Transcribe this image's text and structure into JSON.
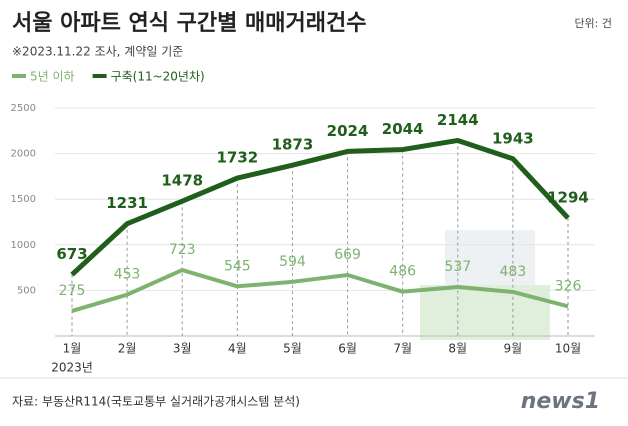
{
  "chart_data": {
    "type": "line",
    "title": "서울 아파트 연식 구간별 매매거래건수",
    "subtitle": "※2023.11.22 조사, 계약일 기준",
    "unit": "단위: 건",
    "source": "자료: 부동산R114(국토교통부 실거래가공개시스템 분석)",
    "logo": "news1",
    "year_label": "2023년",
    "categories": [
      "1월",
      "2월",
      "3월",
      "4월",
      "5월",
      "6월",
      "7월",
      "8월",
      "9월",
      "10월"
    ],
    "series": [
      {
        "name": "5년 이하",
        "color": "#7db36e",
        "values": [
          275,
          453,
          723,
          545,
          594,
          669,
          486,
          537,
          483,
          326
        ]
      },
      {
        "name": "구축(11~20년차)",
        "color": "#1f5e1b",
        "values": [
          673,
          1231,
          1478,
          1732,
          1873,
          2024,
          2044,
          2144,
          1943,
          1294
        ]
      }
    ],
    "ylim": [
      0,
      2500
    ],
    "yticks": [
      500,
      1000,
      1500,
      2000,
      2500
    ],
    "grid": true
  }
}
